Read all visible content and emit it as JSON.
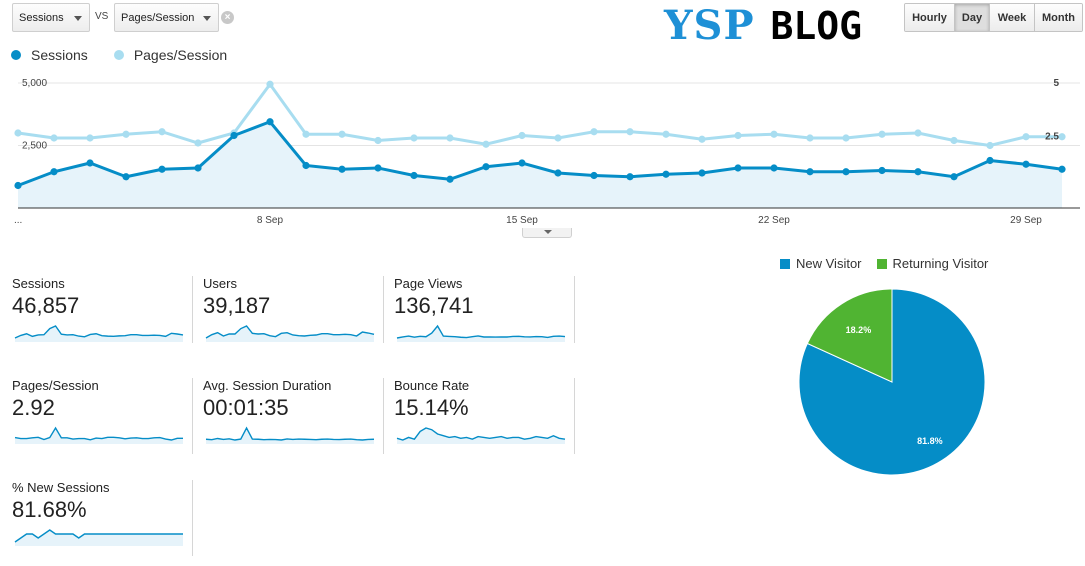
{
  "controls": {
    "metric_primary": "Sessions",
    "vs_label": "VS",
    "metric_secondary": "Pages/Session",
    "remove_icon": "×",
    "granularity": [
      {
        "label": "Hourly",
        "active": false
      },
      {
        "label": "Day",
        "active": true
      },
      {
        "label": "Week",
        "active": false
      },
      {
        "label": "Month",
        "active": false
      }
    ]
  },
  "logo": {
    "part1": "YSP",
    "part2": "BLOG"
  },
  "colors": {
    "sessions": "#058dc7",
    "pages_session": "#a8ddf0",
    "area": "#e6f3fa",
    "new_visitor": "#058dc7",
    "returning_visitor": "#50b432"
  },
  "chart_data": [
    {
      "type": "line",
      "x_ticks": [
        "...",
        "8 Sep",
        "15 Sep",
        "22 Sep",
        "29 Sep"
      ],
      "left_axis": {
        "ticks": [
          "5,000",
          "2,500"
        ],
        "ylim": [
          0,
          5000
        ]
      },
      "right_axis": {
        "ticks": [
          "5",
          "2.5"
        ],
        "ylim": [
          0,
          5
        ]
      },
      "series": [
        {
          "name": "Sessions",
          "axis": "left",
          "values": [
            900,
            1450,
            1800,
            1250,
            1550,
            1600,
            2900,
            3450,
            1700,
            1550,
            1600,
            1300,
            1150,
            1650,
            1800,
            1400,
            1300,
            1250,
            1350,
            1400,
            1600,
            1600,
            1450,
            1450,
            1500,
            1450,
            1250,
            1900,
            1750,
            1550
          ]
        },
        {
          "name": "Pages/Session",
          "axis": "right",
          "values": [
            3.0,
            2.8,
            2.8,
            2.95,
            3.05,
            2.6,
            3.0,
            4.95,
            2.95,
            2.95,
            2.7,
            2.8,
            2.8,
            2.55,
            2.9,
            2.8,
            3.05,
            3.05,
            2.95,
            2.75,
            2.9,
            2.95,
            2.8,
            2.8,
            2.95,
            3.0,
            2.7,
            2.5,
            2.85,
            2.85
          ]
        }
      ]
    },
    {
      "type": "pie",
      "series": [
        {
          "name": "New Visitor",
          "value": 81.8,
          "label": "81.8%"
        },
        {
          "name": "Returning Visitor",
          "value": 18.2,
          "label": "18.2%"
        }
      ]
    }
  ],
  "metrics": [
    {
      "label": "Sessions",
      "value": "46,857",
      "spark": [
        900,
        1450,
        1800,
        1250,
        1550,
        1600,
        2900,
        3450,
        1700,
        1550,
        1600,
        1300,
        1150,
        1650,
        1800,
        1400,
        1300,
        1250,
        1350,
        1400,
        1600,
        1600,
        1450,
        1450,
        1500,
        1450,
        1250,
        1900,
        1750,
        1550
      ]
    },
    {
      "label": "Users",
      "value": "39,187",
      "spark": [
        800,
        1300,
        1600,
        1100,
        1400,
        1400,
        2200,
        2600,
        1500,
        1400,
        1450,
        1150,
        1000,
        1500,
        1600,
        1250,
        1150,
        1100,
        1200,
        1250,
        1450,
        1450,
        1300,
        1300,
        1350,
        1300,
        1100,
        1700,
        1550,
        1350
      ]
    },
    {
      "label": "Page Views",
      "value": "136,741",
      "spark": [
        2700,
        4000,
        5000,
        3700,
        4700,
        4200,
        8600,
        17000,
        5000,
        4600,
        4300,
        3600,
        3200,
        4200,
        5200,
        3900,
        4000,
        3800,
        4000,
        3900,
        4600,
        4700,
        4100,
        4000,
        4400,
        4300,
        3400,
        4700,
        5000,
        4400
      ]
    },
    {
      "label": "Pages/Session",
      "value": "2.92",
      "spark": [
        3.0,
        2.8,
        2.8,
        2.95,
        3.05,
        2.6,
        3.0,
        4.95,
        2.95,
        2.95,
        2.7,
        2.8,
        2.8,
        2.55,
        2.9,
        2.8,
        3.05,
        3.05,
        2.95,
        2.75,
        2.9,
        2.95,
        2.8,
        2.8,
        2.95,
        3.0,
        2.7,
        2.5,
        2.85,
        2.85
      ]
    },
    {
      "label": "Avg. Session Duration",
      "value": "00:01:35",
      "spark": [
        95,
        92,
        100,
        94,
        98,
        90,
        96,
        170,
        96,
        95,
        92,
        94,
        93,
        90,
        97,
        94,
        96,
        95,
        94,
        92,
        95,
        96,
        94,
        93,
        95,
        96,
        92,
        90,
        94,
        95
      ]
    },
    {
      "label": "Bounce Rate",
      "value": "15.14%",
      "spark": [
        14,
        12,
        15,
        13,
        22,
        26,
        24,
        19,
        17,
        15,
        16,
        14,
        15,
        13,
        16,
        15,
        14,
        15,
        16,
        14,
        15,
        15,
        13,
        14,
        16,
        15,
        14,
        17,
        14,
        13
      ]
    },
    {
      "label": "% New Sessions",
      "value": "81.68%",
      "spark": [
        80,
        81,
        82,
        82,
        81,
        82,
        83,
        82,
        82,
        82,
        82,
        81,
        82,
        82,
        82,
        82,
        82,
        82,
        82,
        82,
        82,
        82,
        82,
        82,
        82,
        82,
        82,
        82,
        82,
        82
      ]
    }
  ]
}
